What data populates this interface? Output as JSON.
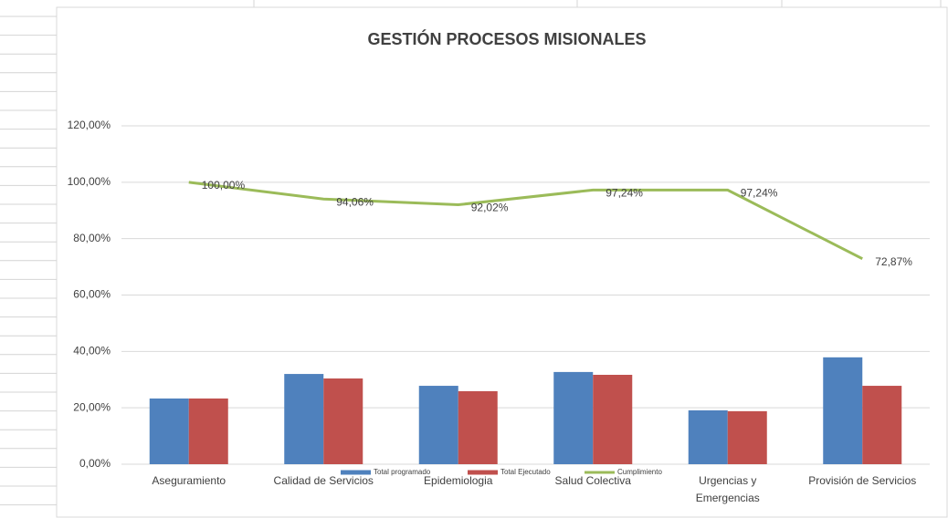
{
  "chart_data": {
    "type": "bar",
    "title": "GESTIÓN PROCESOS MISIONALES",
    "categories": [
      "Aseguramiento",
      "Calidad de Servicios",
      "Epidemiologia",
      "Salud Colectiva",
      "Urgencias y Emergencias",
      "Provisión de Servicios"
    ],
    "series": [
      {
        "name": "Total programado",
        "color": "#4f81bd",
        "type": "bar",
        "values": [
          23.3,
          32.0,
          27.8,
          32.7,
          19.1,
          37.9
        ]
      },
      {
        "name": "Total Ejecutado",
        "color": "#c0504d",
        "type": "bar",
        "values": [
          23.3,
          30.4,
          25.9,
          31.7,
          18.8,
          27.8
        ]
      },
      {
        "name": "Cumplimiento",
        "color": "#9bbb59",
        "type": "line",
        "values": [
          100,
          94.06,
          92.02,
          97.24,
          97.24,
          72.87
        ],
        "value_labels": [
          "100,00%",
          "94,06%",
          "92,02%",
          "97,24%",
          "97,24%",
          "72,87%"
        ]
      }
    ],
    "ylim": [
      0,
      120
    ],
    "yticks": [
      {
        "value": 0,
        "label": "0,00%"
      },
      {
        "value": 20,
        "label": "20,00%"
      },
      {
        "value": 40,
        "label": "40,00%"
      },
      {
        "value": 60,
        "label": "60,00%"
      },
      {
        "value": 80,
        "label": "80,00%"
      },
      {
        "value": 100,
        "label": "100,00%"
      },
      {
        "value": 120,
        "label": "120,00%"
      }
    ],
    "grid": true,
    "legend": "bottom"
  }
}
